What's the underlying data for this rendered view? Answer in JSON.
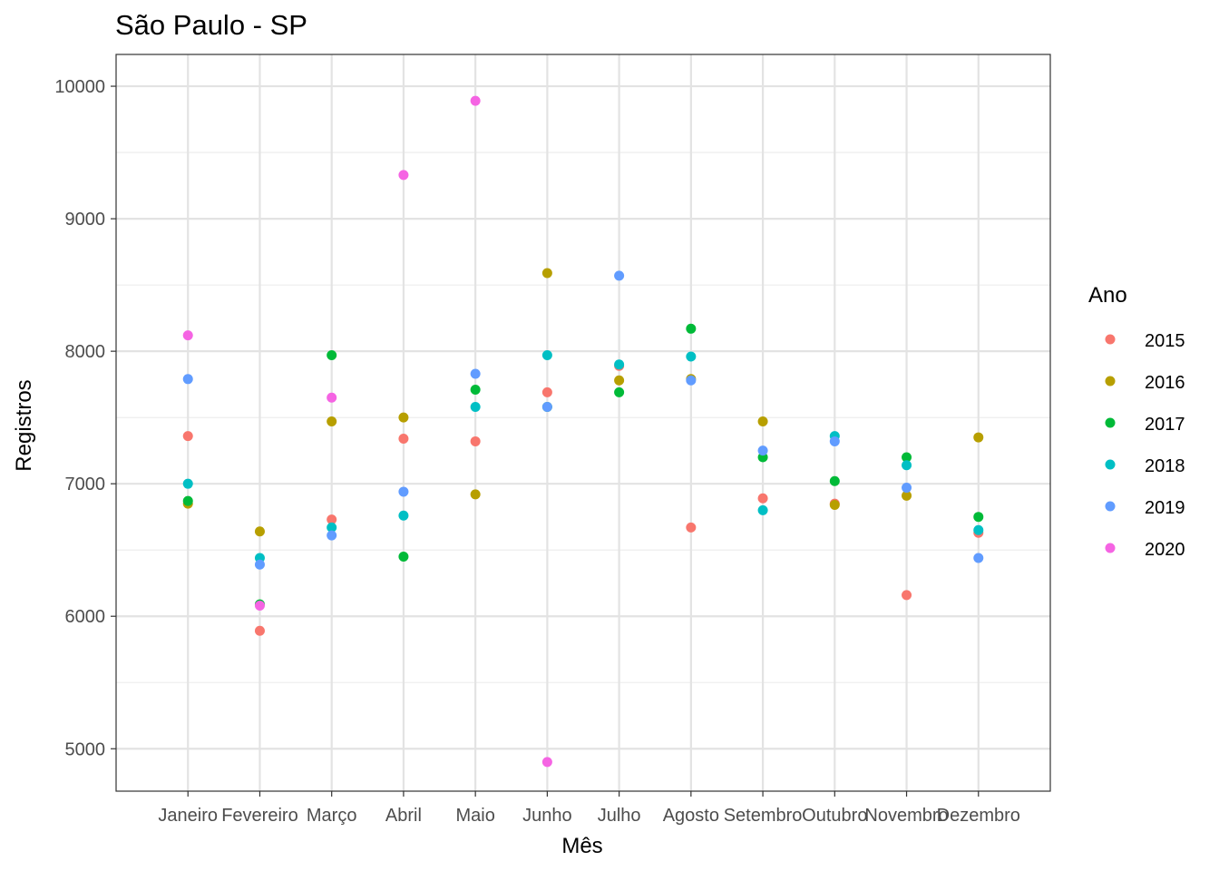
{
  "chart_data": {
    "type": "scatter",
    "title": "São Paulo - SP",
    "xlabel": "Mês",
    "ylabel": "Registros",
    "categories": [
      "Janeiro",
      "Fevereiro",
      "Março",
      "Abril",
      "Maio",
      "Junho",
      "Julho",
      "Agosto",
      "Setembro",
      "Outubro",
      "Novembro",
      "Dezembro"
    ],
    "ylim": [
      4680,
      10240
    ],
    "yticks": [
      5000,
      6000,
      7000,
      8000,
      9000,
      10000
    ],
    "grid": true,
    "legend": {
      "title": "Ano",
      "position": "right"
    },
    "series": [
      {
        "name": "2015",
        "color": "#F8766D",
        "values": [
          7360,
          5890,
          6730,
          7340,
          7320,
          7690,
          7890,
          6670,
          6890,
          6850,
          6160,
          6630
        ]
      },
      {
        "name": "2016",
        "color": "#B79F00",
        "values": [
          6850,
          6640,
          7470,
          7500,
          6920,
          8590,
          7780,
          7790,
          7470,
          6840,
          6910,
          7350
        ]
      },
      {
        "name": "2017",
        "color": "#00BA38",
        "values": [
          6870,
          6090,
          7970,
          6450,
          7710,
          7580,
          7690,
          8170,
          7200,
          7020,
          7200,
          6750
        ]
      },
      {
        "name": "2018",
        "color": "#00BFC4",
        "values": [
          7000,
          6440,
          6670,
          6760,
          7580,
          7970,
          7900,
          7960,
          6800,
          7360,
          7140,
          6650
        ]
      },
      {
        "name": "2019",
        "color": "#619CFF",
        "values": [
          7790,
          6390,
          6610,
          6940,
          7830,
          7580,
          8570,
          7780,
          7250,
          7320,
          6970,
          6440
        ]
      },
      {
        "name": "2020",
        "color": "#F564E3",
        "values": [
          8120,
          6080,
          7650,
          9330,
          9890,
          4900,
          null,
          null,
          null,
          null,
          null,
          null
        ]
      }
    ]
  }
}
